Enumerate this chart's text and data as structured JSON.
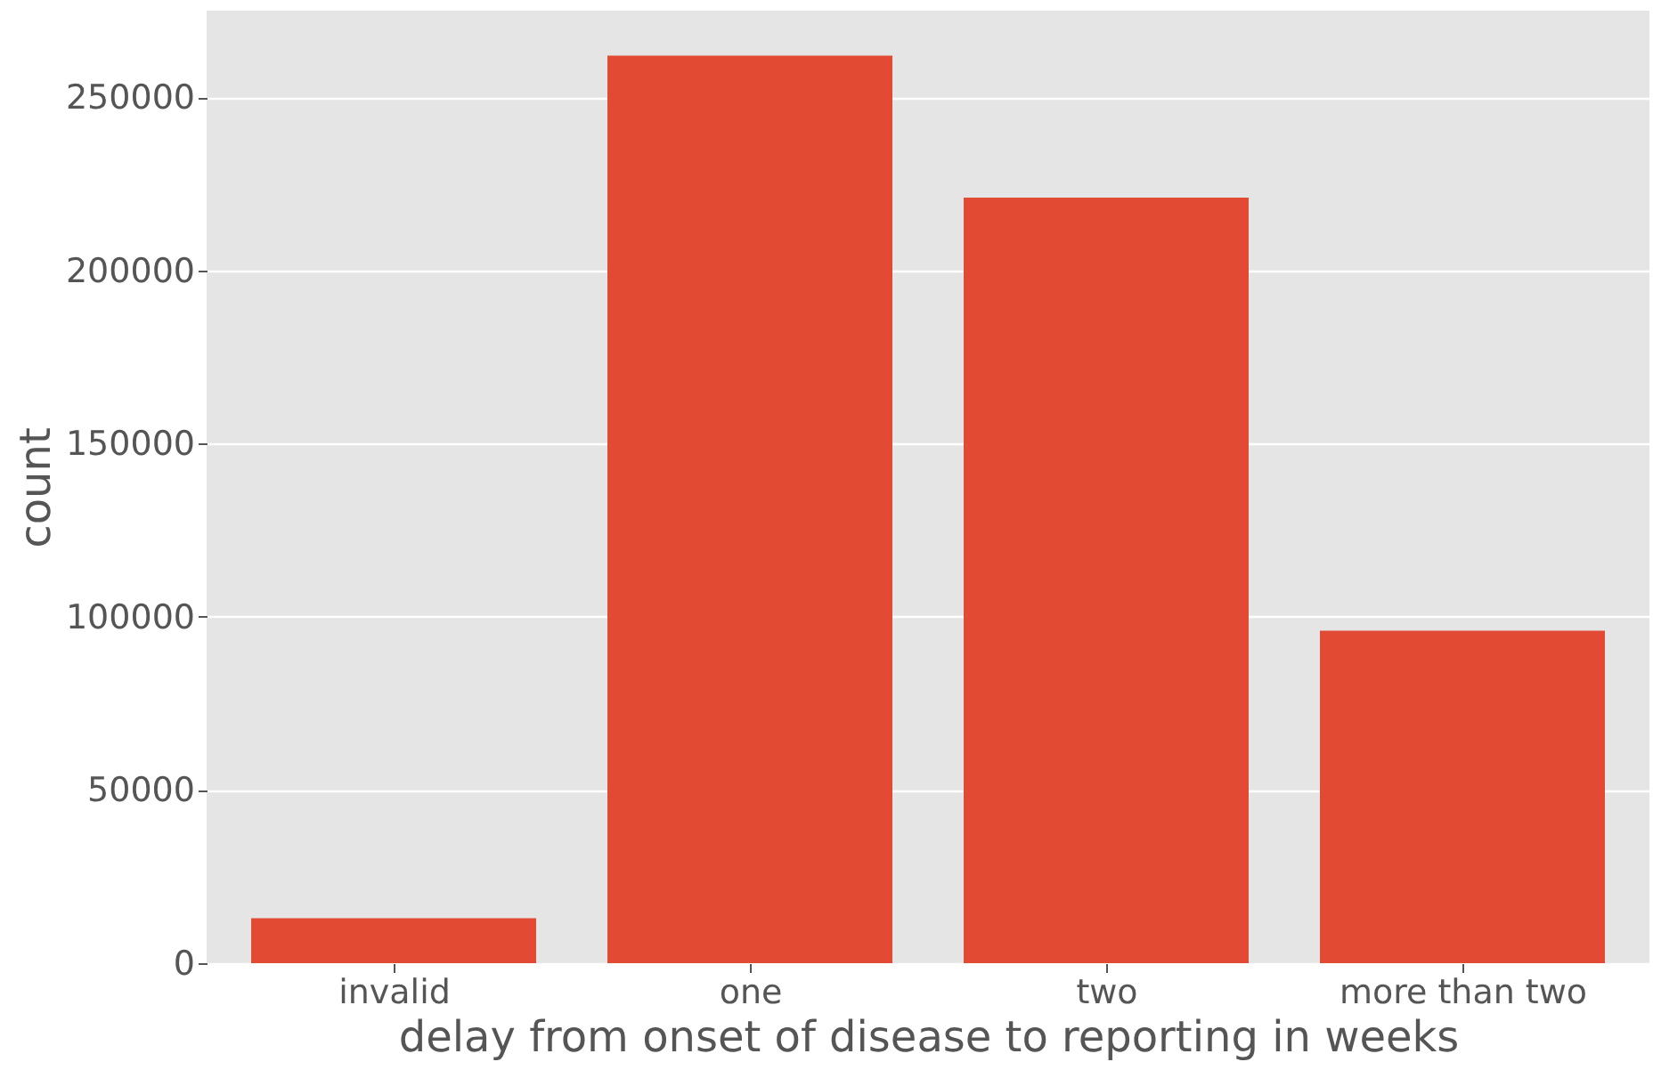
{
  "chart_data": {
    "type": "bar",
    "xlabel": "delay from onset of disease to reporting in weeks",
    "ylabel": "count",
    "categories": [
      "invalid",
      "one",
      "two",
      "more than two"
    ],
    "values": [
      13000,
      262000,
      221000,
      96000
    ],
    "color": "#e24a33",
    "ylim": [
      0,
      275000
    ],
    "yticks": [
      0,
      50000,
      100000,
      150000,
      200000,
      250000
    ],
    "grid": "y"
  }
}
